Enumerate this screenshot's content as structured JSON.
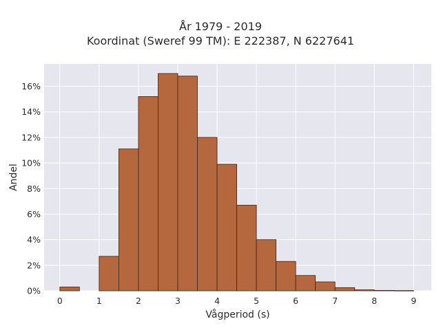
{
  "chart_data": {
    "type": "bar",
    "title": "År 1979 - 2019",
    "subtitle": "Koordinat (Sweref 99 TM): E 222387, N 6227641",
    "xlabel": "Vågperiod (s)",
    "ylabel": "Andel",
    "bin_width": 0.5,
    "bins_start": [
      0,
      0.5,
      1,
      1.5,
      2,
      2.5,
      3,
      3.5,
      4,
      4.5,
      5,
      5.5,
      6,
      6.5,
      7,
      7.5,
      8,
      8.5
    ],
    "values": [
      0.3,
      0.0,
      2.7,
      11.1,
      15.2,
      17.0,
      16.8,
      12.0,
      9.9,
      6.7,
      4.0,
      2.3,
      1.2,
      0.7,
      0.25,
      0.08,
      0.03,
      0.02
    ],
    "xticks": [
      "0",
      "1",
      "2",
      "3",
      "4",
      "5",
      "6",
      "7",
      "8",
      "9"
    ],
    "yticks": [
      "0%",
      "2%",
      "4%",
      "6%",
      "8%",
      "10%",
      "12%",
      "14%",
      "16%"
    ],
    "xlim": [
      -0.4,
      9.45
    ],
    "ylim": [
      0,
      17.75
    ],
    "bar_color": "#b5673e",
    "bar_edge": "#3d2416",
    "plot_bg": "#e6e6ef",
    "grid": true
  }
}
